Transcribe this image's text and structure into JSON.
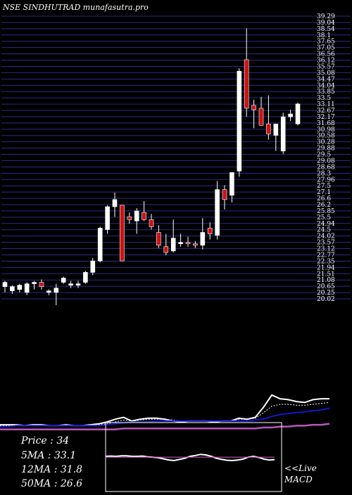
{
  "header": {
    "title": "NSE SINDHUTRAD munafasutra.pro"
  },
  "stats": {
    "price": "Price   : 34",
    "ma5": "5MA : 33.1",
    "ma12": "12MA : 31.8",
    "ma50": "50MA : 26.6"
  },
  "macd": {
    "live_label": "<<Live",
    "label": "MACD"
  },
  "colors": {
    "background": "#000000",
    "grid": "#2b2b8c",
    "candle_up": "#ffffff",
    "candle_down": "#cc1111",
    "ema_long": "#1616cc",
    "ma50": "#bb55bb",
    "macd_signal": "#bb55bb"
  },
  "chart_data": [
    {
      "type": "candlestick",
      "title": "NSE SINDHUTRAD munafasutra.pro",
      "ylim": [
        20,
        40.3
      ],
      "grid": true,
      "y_tick_labels": [
        "39.29",
        "39.04",
        "38.54",
        "38.1",
        "37.65",
        "37.05",
        "36.56",
        "36.12",
        "35.57",
        "35.08",
        "34.47",
        "34.04",
        "33.85",
        "33.5",
        "33.11",
        "32.67",
        "32.17",
        "31.68",
        "30.98",
        "30.58",
        "30.28",
        "29.88",
        "29.5",
        "29.08",
        "28.68",
        "28.3",
        "27.96",
        "27.5",
        "27.1",
        "26.6",
        "26.2",
        "25.85",
        "25.5",
        "24.94",
        "24.5",
        "24.02",
        "23.57",
        "23.12",
        "22.77",
        "22.35",
        "21.94",
        "21.51",
        "21.08",
        "20.65",
        "20.25",
        "20.02"
      ],
      "candles": [
        {
          "o": 21.2,
          "h": 21.6,
          "l": 20.8,
          "c": 21.5
        },
        {
          "o": 20.9,
          "h": 21.3,
          "l": 20.7,
          "c": 21.2
        },
        {
          "o": 21.0,
          "h": 21.4,
          "l": 20.8,
          "c": 21.3
        },
        {
          "o": 20.8,
          "h": 21.5,
          "l": 20.6,
          "c": 21.4
        },
        {
          "o": 21.4,
          "h": 21.6,
          "l": 21.0,
          "c": 21.5
        },
        {
          "o": 21.5,
          "h": 21.7,
          "l": 21.0,
          "c": 21.2
        },
        {
          "o": 20.8,
          "h": 21.0,
          "l": 20.6,
          "c": 20.9
        },
        {
          "o": 20.8,
          "h": 21.4,
          "l": 19.9,
          "c": 21.1
        },
        {
          "o": 21.5,
          "h": 21.9,
          "l": 21.4,
          "c": 21.8
        },
        {
          "o": 21.3,
          "h": 21.6,
          "l": 21.1,
          "c": 21.4
        },
        {
          "o": 21.3,
          "h": 21.6,
          "l": 21.1,
          "c": 21.4
        },
        {
          "o": 21.5,
          "h": 22.3,
          "l": 21.4,
          "c": 22.2
        },
        {
          "o": 22.2,
          "h": 23.2,
          "l": 22.0,
          "c": 23.0
        },
        {
          "o": 23.0,
          "h": 25.4,
          "l": 22.9,
          "c": 25.3
        },
        {
          "o": 25.2,
          "h": 26.9,
          "l": 24.9,
          "c": 26.8
        },
        {
          "o": 26.8,
          "h": 27.8,
          "l": 26.1,
          "c": 27.3
        },
        {
          "o": 26.9,
          "h": 26.9,
          "l": 23.0,
          "c": 23.0
        },
        {
          "o": 26.1,
          "h": 26.4,
          "l": 25.6,
          "c": 25.9
        },
        {
          "o": 25.8,
          "h": 26.7,
          "l": 24.9,
          "c": 26.5
        },
        {
          "o": 26.4,
          "h": 27.2,
          "l": 25.8,
          "c": 25.9
        },
        {
          "o": 25.9,
          "h": 26.3,
          "l": 25.2,
          "c": 25.4
        },
        {
          "o": 25.0,
          "h": 25.5,
          "l": 23.9,
          "c": 24.1
        },
        {
          "o": 24.0,
          "h": 24.9,
          "l": 23.4,
          "c": 23.6
        },
        {
          "o": 23.7,
          "h": 25.9,
          "l": 23.6,
          "c": 24.6
        },
        {
          "o": 24.3,
          "h": 24.9,
          "l": 24.0,
          "c": 24.3
        },
        {
          "o": 24.3,
          "h": 24.7,
          "l": 24.0,
          "c": 24.2
        },
        {
          "o": 24.2,
          "h": 24.4,
          "l": 23.9,
          "c": 24.1
        },
        {
          "o": 24.1,
          "h": 26.0,
          "l": 23.8,
          "c": 25.0
        },
        {
          "o": 25.3,
          "h": 25.7,
          "l": 24.5,
          "c": 24.9
        },
        {
          "o": 24.8,
          "h": 28.6,
          "l": 24.5,
          "c": 28.0
        },
        {
          "o": 28.0,
          "h": 28.3,
          "l": 26.6,
          "c": 27.3
        },
        {
          "o": 27.6,
          "h": 29.0,
          "l": 27.1,
          "c": 29.2
        },
        {
          "o": 29.3,
          "h": 36.5,
          "l": 28.9,
          "c": 36.3
        },
        {
          "o": 37.1,
          "h": 39.3,
          "l": 33.1,
          "c": 33.7
        },
        {
          "o": 33.9,
          "h": 34.3,
          "l": 32.3,
          "c": 33.6
        },
        {
          "o": 33.7,
          "h": 34.5,
          "l": 32.6,
          "c": 32.5
        },
        {
          "o": 32.6,
          "h": 34.6,
          "l": 31.5,
          "c": 31.9
        },
        {
          "o": 31.8,
          "h": 32.6,
          "l": 30.7,
          "c": 32.6
        },
        {
          "o": 30.7,
          "h": 33.4,
          "l": 30.5,
          "c": 33.1
        },
        {
          "o": 33.1,
          "h": 33.6,
          "l": 32.8,
          "c": 33.3
        },
        {
          "o": 32.6,
          "h": 34.1,
          "l": 32.5,
          "c": 34.0
        }
      ]
    },
    {
      "type": "line",
      "ylim": [
        0,
        100
      ],
      "series": [
        {
          "key": "price",
          "values": [
            6,
            6,
            6,
            5,
            6,
            6,
            5,
            5,
            6,
            5,
            5,
            6,
            7,
            9,
            12,
            14,
            10,
            12,
            13,
            13,
            12,
            10,
            9,
            10,
            10,
            10,
            9,
            10,
            10,
            13,
            12,
            14,
            25,
            38,
            34,
            33,
            31,
            30,
            33,
            34,
            34
          ]
        },
        {
          "key": "ema_fast",
          "values": [
            5,
            5,
            6,
            5,
            6,
            5,
            5,
            5,
            5,
            5,
            5,
            5,
            6,
            7,
            9,
            11,
            10,
            11,
            12,
            12,
            12,
            11,
            10,
            10,
            10,
            10,
            9,
            10,
            10,
            12,
            12,
            13,
            19,
            26,
            28,
            28,
            27,
            27,
            28,
            29,
            30
          ]
        },
        {
          "key": "ema_long",
          "values": [
            4,
            4,
            5,
            5,
            5,
            5,
            5,
            5,
            5,
            5,
            5,
            5,
            5,
            6,
            7,
            8,
            9,
            9,
            9,
            10,
            10,
            10,
            10,
            10,
            10,
            10,
            10,
            10,
            10,
            10,
            10,
            11,
            12,
            15,
            17,
            18,
            19,
            20,
            21,
            22,
            24
          ]
        },
        {
          "key": "ma50",
          "values": [
            1,
            1,
            1,
            1,
            1,
            1,
            1,
            1,
            1,
            1,
            1,
            1,
            1,
            1,
            1,
            2,
            2,
            2,
            2,
            2,
            2,
            2,
            2,
            2,
            2,
            2,
            2,
            2,
            2,
            2,
            2,
            2,
            3,
            3,
            4,
            4,
            5,
            5,
            6,
            6,
            7
          ]
        }
      ]
    },
    {
      "type": "line",
      "title": "MACD",
      "ylim": [
        -1,
        1
      ],
      "series": [
        {
          "key": "macd",
          "values": [
            0.05,
            0.06,
            0.05,
            0.07,
            0.07,
            0.05,
            0.05,
            0.06,
            0.03,
            0.02,
            0.0,
            -0.04,
            -0.08,
            -0.1,
            -0.06,
            -0.02,
            0.05,
            0.08,
            0.12,
            0.1,
            0.05,
            -0.02,
            -0.06,
            -0.09,
            -0.1,
            -0.08,
            -0.05,
            0.02,
            0.05,
            0.01,
            -0.05,
            -0.08,
            -0.07
          ]
        },
        {
          "key": "signal",
          "values": [
            0.02,
            0.02,
            0.02,
            0.02,
            0.02,
            0.02,
            0.02,
            0.02,
            0.02,
            0.02,
            0.02,
            0.02,
            0.02,
            0.02,
            0.02,
            0.02,
            0.02,
            0.02,
            0.02,
            0.02,
            0.02,
            0.02,
            0.02,
            0.02,
            0.02,
            0.02,
            0.02,
            0.02,
            0.02,
            0.02,
            0.02,
            0.02,
            0.02
          ]
        }
      ]
    }
  ]
}
